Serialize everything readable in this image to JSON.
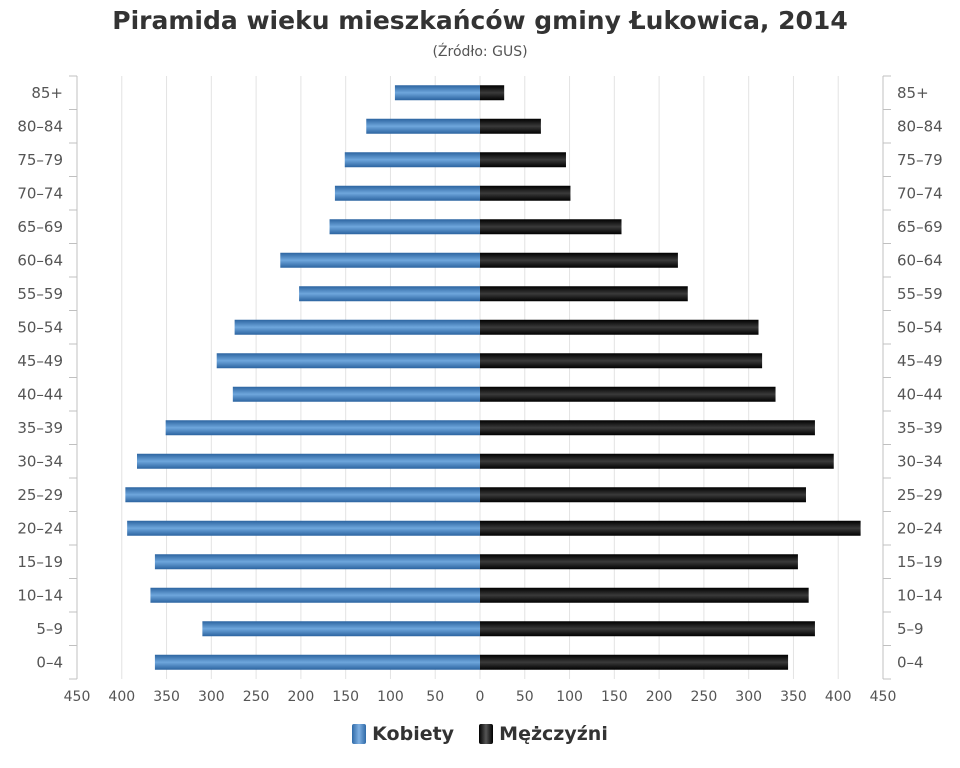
{
  "chart_data": {
    "type": "bar",
    "orientation": "horizontal-population-pyramid",
    "title": "Piramida wieku mieszkańców gminy Łukowica, 2014",
    "subtitle": "(Źródło: GUS)",
    "categories": [
      "85+",
      "80–84",
      "75–79",
      "70–74",
      "65–69",
      "60–64",
      "55–59",
      "50–54",
      "45–49",
      "40–44",
      "35–39",
      "30–34",
      "25–29",
      "20–24",
      "15–19",
      "10–14",
      "5–9",
      "0–4"
    ],
    "series": [
      {
        "name": "Kobiety",
        "side": "left",
        "color": "#4a86c5",
        "values": [
          95,
          127,
          151,
          162,
          168,
          223,
          202,
          274,
          294,
          276,
          351,
          383,
          396,
          394,
          363,
          368,
          310,
          363
        ]
      },
      {
        "name": "Mężczyźni",
        "side": "right",
        "color": "#1e1e1e",
        "values": [
          27,
          68,
          96,
          101,
          158,
          221,
          232,
          311,
          315,
          330,
          374,
          395,
          364,
          425,
          355,
          367,
          374,
          344
        ]
      }
    ],
    "xlim": [
      -450,
      450
    ],
    "xticks": [
      -450,
      -400,
      -350,
      -300,
      -250,
      -200,
      -150,
      -100,
      -50,
      0,
      50,
      100,
      150,
      200,
      250,
      300,
      350,
      400,
      450
    ],
    "xtick_labels": [
      "450",
      "400",
      "350",
      "300",
      "250",
      "200",
      "150",
      "100",
      "50",
      "0",
      "50",
      "100",
      "150",
      "200",
      "250",
      "300",
      "350",
      "400",
      "450"
    ],
    "grid": true,
    "legend_position": "bottom-center"
  }
}
